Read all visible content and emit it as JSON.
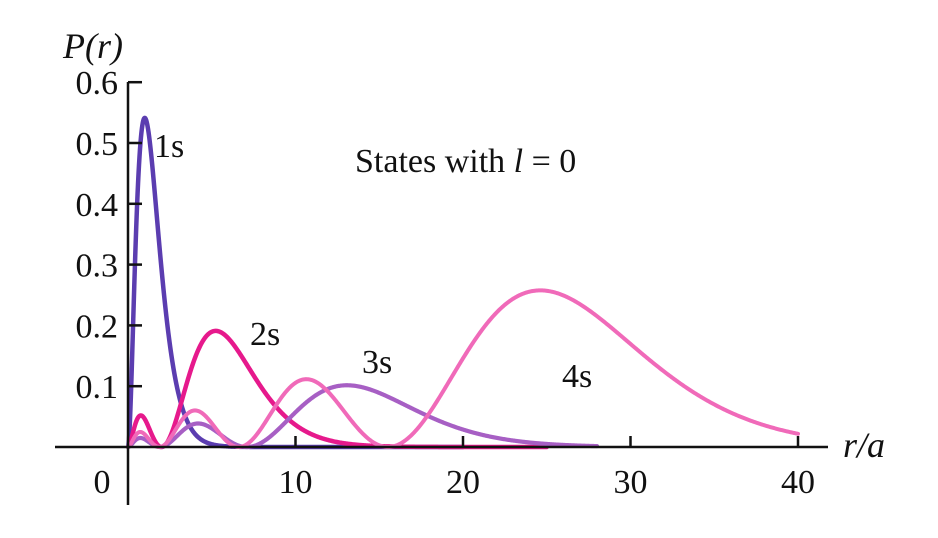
{
  "chart_data": {
    "type": "line",
    "x_axis": {
      "min": 0,
      "max": 42,
      "ticks": [
        0,
        10,
        20,
        30,
        40
      ],
      "tick_labels": [
        "0",
        "10",
        "20",
        "30",
        "40"
      ],
      "label": "r/a"
    },
    "y_axis": {
      "min": 0,
      "max": 0.6,
      "ticks": [
        0.1,
        0.2,
        0.3,
        0.4,
        0.5,
        0.6
      ],
      "tick_labels": [
        "0.1",
        "0.2",
        "0.3",
        "0.4",
        "0.5",
        "0.6"
      ],
      "label": "P(r)"
    },
    "annotation": {
      "prefix": "States with ",
      "variable": "l",
      "suffix": " = 0"
    },
    "series": [
      {
        "name": "1s",
        "n": 1,
        "color": "#5b3db0",
        "x_max": 20
      },
      {
        "name": "2s",
        "n": 2,
        "color": "#e6198c",
        "x_max": 25
      },
      {
        "name": "3s",
        "n": 3,
        "color": "#a75fc4",
        "x_max": 28
      },
      {
        "name": "4s",
        "n": 4,
        "color": "#f06ab9",
        "x_max": 40
      }
    ],
    "grid": false,
    "legend": "inline labels"
  }
}
